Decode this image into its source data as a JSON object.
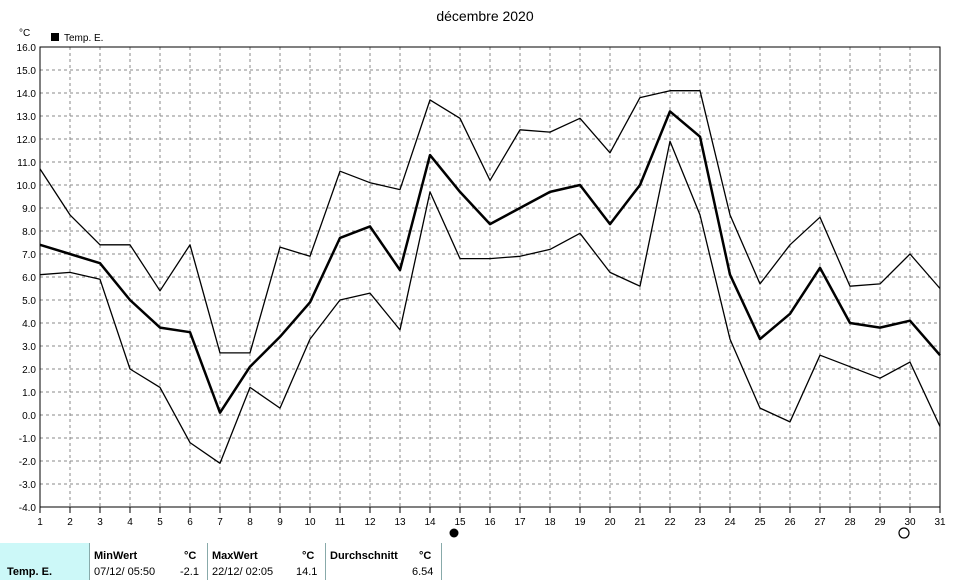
{
  "chart_data": {
    "type": "line",
    "title": "décembre 2020",
    "ylabel": "°C",
    "xlabel": "",
    "legend": {
      "label": "Temp. E.",
      "placement": "top-left"
    },
    "ylim": [
      -4.0,
      16.0
    ],
    "yticks": [
      "-4.0",
      "-3.0",
      "-2.0",
      "-1.0",
      "0.0",
      "1.0",
      "2.0",
      "3.0",
      "4.0",
      "5.0",
      "6.0",
      "7.0",
      "8.0",
      "9.0",
      "10.0",
      "11.0",
      "12.0",
      "13.0",
      "14.0",
      "15.0",
      "16.0"
    ],
    "xlim": [
      1,
      31
    ],
    "x": [
      1,
      2,
      3,
      4,
      5,
      6,
      7,
      8,
      9,
      10,
      11,
      12,
      13,
      14,
      15,
      16,
      17,
      18,
      19,
      20,
      21,
      22,
      23,
      24,
      25,
      26,
      27,
      28,
      29,
      30,
      31
    ],
    "grid": true,
    "series": [
      {
        "role": "max",
        "values": [
          10.7,
          8.7,
          7.4,
          7.4,
          5.4,
          7.4,
          2.7,
          2.7,
          7.3,
          6.9,
          10.6,
          10.1,
          9.8,
          13.7,
          12.9,
          10.2,
          12.4,
          12.3,
          12.9,
          11.4,
          13.8,
          14.1,
          14.1,
          8.7,
          5.7,
          7.4,
          8.6,
          5.6,
          5.7,
          7.0,
          5.5
        ]
      },
      {
        "role": "mean",
        "values": [
          7.4,
          7.0,
          6.6,
          5.0,
          3.8,
          3.6,
          0.1,
          2.1,
          3.4,
          4.9,
          7.7,
          8.2,
          6.3,
          11.3,
          9.7,
          8.3,
          9.0,
          9.7,
          10.0,
          8.3,
          10.0,
          13.2,
          12.1,
          6.1,
          3.3,
          4.4,
          6.4,
          4.0,
          3.8,
          4.1,
          2.6
        ]
      },
      {
        "role": "min",
        "values": [
          6.1,
          6.2,
          5.9,
          2.0,
          1.2,
          -1.2,
          -2.1,
          1.2,
          0.3,
          3.3,
          5.0,
          5.3,
          3.7,
          9.7,
          6.8,
          6.8,
          6.9,
          7.2,
          7.9,
          6.2,
          5.6,
          11.9,
          8.7,
          3.3,
          0.3,
          -0.3,
          2.6,
          2.1,
          1.6,
          2.3,
          -0.5
        ]
      }
    ],
    "markers": [
      {
        "day": 15,
        "shape": "filled-circle"
      },
      {
        "day": 30,
        "shape": "open-circle"
      }
    ]
  },
  "footer": {
    "row_label": "Temp. E.",
    "min_header": "MinWert",
    "min_unit": "°C",
    "min_datetime": "07/12/  05:50",
    "min_value": "-2.1",
    "max_header": "MaxWert",
    "max_unit": "°C",
    "max_datetime": "22/12/  02:05",
    "max_value": "14.1",
    "avg_header": "Durchschnitt",
    "avg_unit": "°C",
    "avg_value": "6.54"
  }
}
